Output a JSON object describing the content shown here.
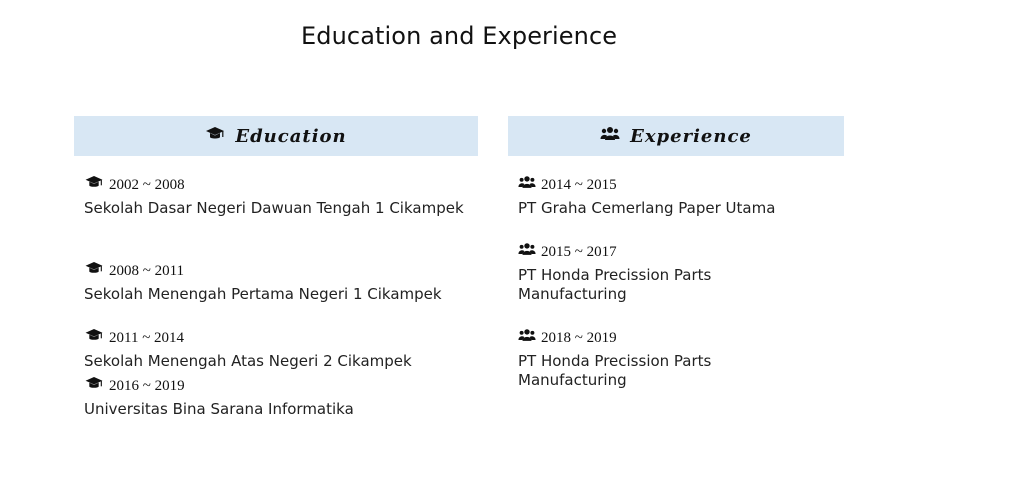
{
  "page": {
    "title": "Education and Experience"
  },
  "education": {
    "heading": "Education",
    "icon": "graduation-cap-icon",
    "items": [
      {
        "period": "2002 ~ 2008",
        "name": "Sekolah Dasar Negeri Dawuan Tengah 1 Cikampek"
      },
      {
        "period": "2008 ~ 2011",
        "name": "Sekolah Menengah Pertama Negeri 1 Cikampek"
      },
      {
        "period": "2011 ~ 2014",
        "name": "Sekolah Menengah Atas Negeri 2 Cikampek"
      },
      {
        "period": "2016 ~ 2019",
        "name": "Universitas Bina Sarana Informatika"
      }
    ]
  },
  "experience": {
    "heading": "Experience",
    "icon": "users-icon",
    "items": [
      {
        "period": "2014 ~ 2015",
        "name": "PT Graha Cemerlang Paper Utama"
      },
      {
        "period": "2015 ~ 2017",
        "name": "PT Honda Precission Parts Manufacturing"
      },
      {
        "period": "2018 ~ 2019",
        "name": "PT Honda Precission Parts Manufacturing"
      }
    ]
  },
  "colors": {
    "header_bg": "#d8e7f4",
    "text": "#222222"
  }
}
